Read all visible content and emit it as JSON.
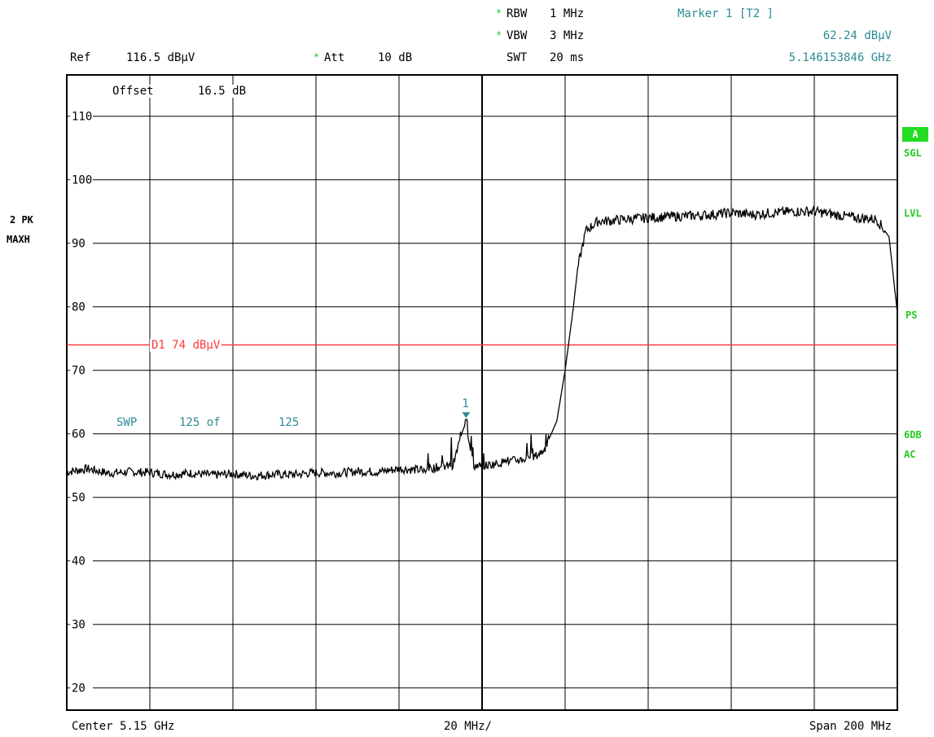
{
  "header": {
    "ref_label": "Ref",
    "ref_value": "116.5 dBµV",
    "att_label": "Att",
    "att_value": "10 dB",
    "rbw_label": "RBW",
    "rbw_value": "1 MHz",
    "vbw_label": "VBW",
    "vbw_value": "3 MHz",
    "swt_label": "SWT",
    "swt_value": "20 ms",
    "star": "*",
    "marker_title": "Marker 1 [T2 ]",
    "marker_level": "62.24 dBµV",
    "marker_freq": "5.146153846 GHz"
  },
  "plot_annotations": {
    "offset_label": "Offset",
    "offset_value": "16.5 dB",
    "display_line": "D1 74 dBµV",
    "swp_label": "SWP",
    "swp_value": "125 of",
    "swp_total": "125",
    "marker_number": "1"
  },
  "left_labels": {
    "trace_mode": "2 PK",
    "trace_hold": "MAXH"
  },
  "side_labels": {
    "a_badge": "A",
    "sgl": "SGL",
    "lvl": "LVL",
    "ps": "PS",
    "db6": "6DB",
    "ac": "AC"
  },
  "footer": {
    "center": "Center 5.15 GHz",
    "per_div": "20 MHz/",
    "span": "Span 200 MHz"
  },
  "colors": {
    "trace": "#000000",
    "grid": "#000000",
    "display_line": "#ff3b3b",
    "annotation": "#2e8b96",
    "status_green": "#22cc22"
  },
  "chart_data": {
    "type": "line",
    "title": "",
    "xlabel": "",
    "ylabel": "",
    "x_unit": "GHz",
    "y_unit": "dBµV",
    "xlim": [
      5.05,
      5.25
    ],
    "ylim": [
      16.5,
      116.5
    ],
    "y_ticks": [
      20,
      30,
      40,
      50,
      60,
      70,
      80,
      90,
      100,
      110
    ],
    "grid": true,
    "display_line_level": 74,
    "marker": {
      "x": 5.146153846,
      "y": 62.24
    },
    "series": [
      {
        "x": [
          5.05,
          5.055,
          5.06,
          5.065,
          5.07,
          5.075,
          5.08,
          5.085,
          5.09,
          5.095,
          5.1,
          5.105,
          5.11,
          5.115,
          5.12,
          5.125,
          5.13,
          5.135,
          5.14,
          5.143,
          5.146,
          5.148,
          5.15,
          5.155,
          5.16,
          5.163,
          5.165,
          5.168,
          5.17,
          5.172,
          5.173,
          5.175,
          5.178,
          5.18,
          5.185,
          5.19,
          5.195,
          5.2,
          5.205,
          5.21,
          5.215,
          5.22,
          5.225,
          5.23,
          5.235,
          5.24,
          5.245,
          5.248,
          5.25
        ],
        "y": [
          54.0,
          54.5,
          53.8,
          54.0,
          53.9,
          53.6,
          53.8,
          53.5,
          53.7,
          53.4,
          53.6,
          53.6,
          53.9,
          53.8,
          54.1,
          54.0,
          54.5,
          54.3,
          54.8,
          55.0,
          62.24,
          55.0,
          54.9,
          55.5,
          56.0,
          56.5,
          57.5,
          62.0,
          70.0,
          80.0,
          86.0,
          92.0,
          93.5,
          93.5,
          93.8,
          94.0,
          94.2,
          94.3,
          94.5,
          94.8,
          94.5,
          94.8,
          95.0,
          95.0,
          94.5,
          94.0,
          93.8,
          91.0,
          79.0
        ]
      }
    ]
  }
}
